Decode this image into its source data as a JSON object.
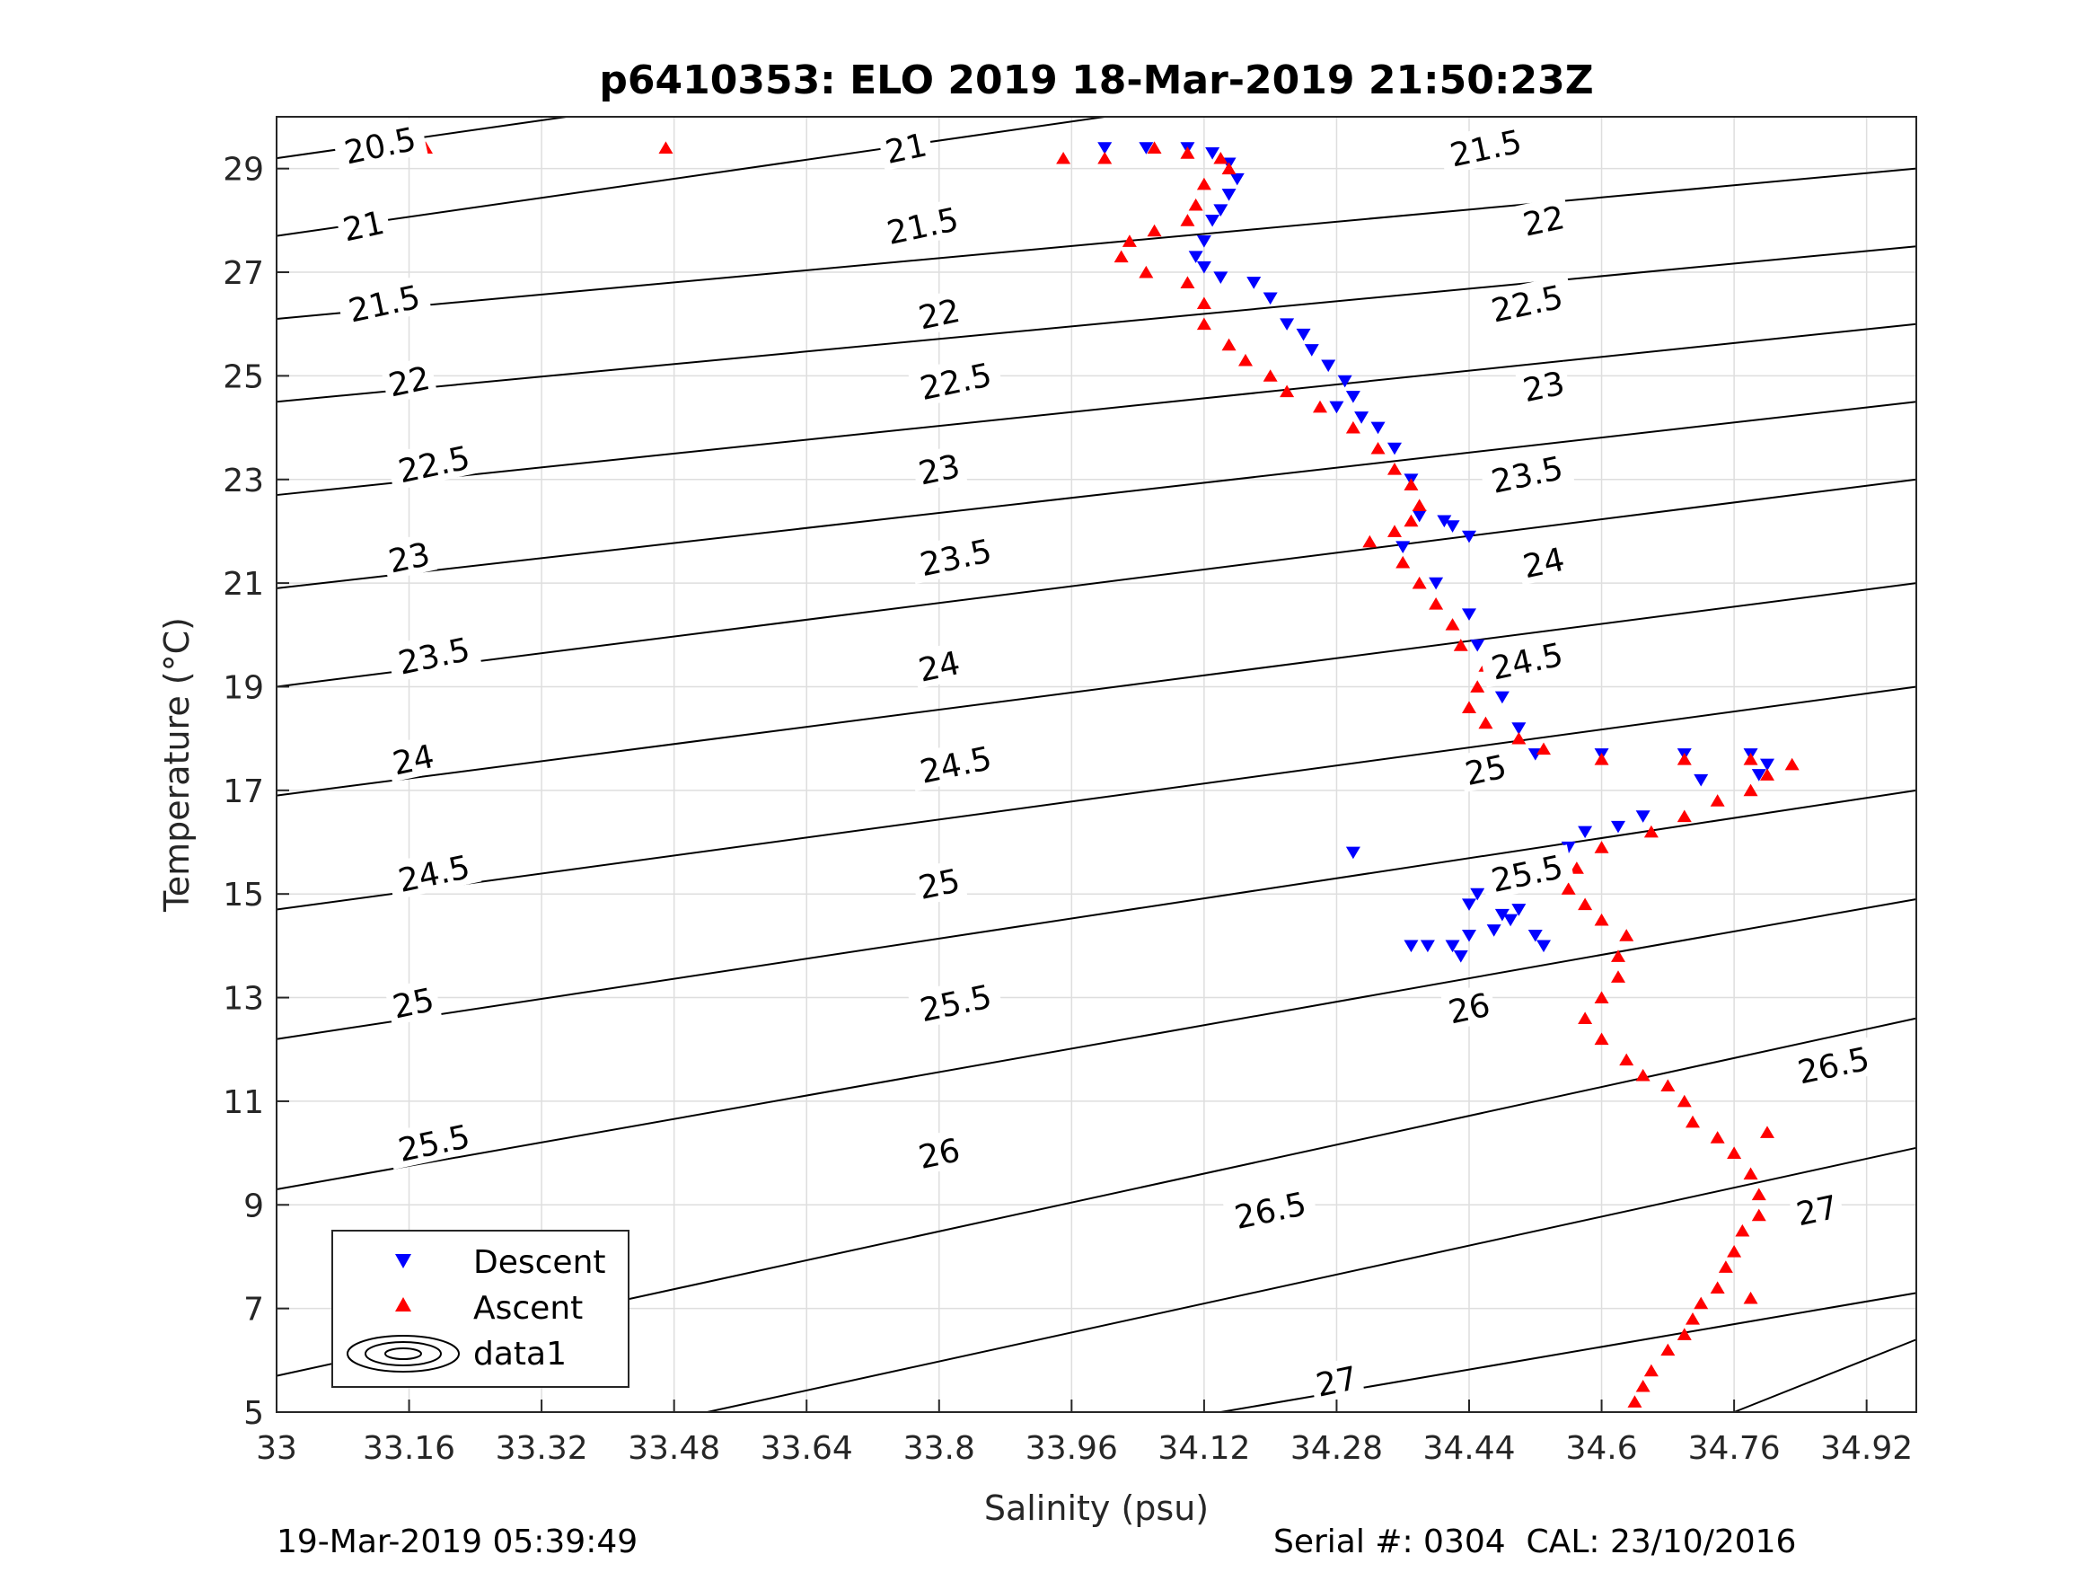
{
  "chart_data": {
    "type": "scatter",
    "title": "p6410353: ELO 2019 18-Mar-2019 21:50:23Z",
    "xlabel": "Salinity (psu)",
    "ylabel": "Temperature (°C)",
    "xlim": [
      33.0,
      34.98
    ],
    "ylim": [
      5,
      30
    ],
    "xticks": [
      "33",
      "33.16",
      "33.32",
      "33.48",
      "33.64",
      "33.8",
      "33.96",
      "34.12",
      "34.28",
      "34.44",
      "34.6",
      "34.76",
      "34.92"
    ],
    "yticks": [
      "5",
      "7",
      "9",
      "11",
      "13",
      "15",
      "17",
      "19",
      "21",
      "23",
      "25",
      "27",
      "29"
    ],
    "grid": true,
    "legend": {
      "placement": "bottom-left",
      "entries": [
        "Descent",
        "Ascent",
        "data1"
      ]
    },
    "series": [
      {
        "name": "Descent",
        "marker": "triangle-down",
        "color": "#0000ff",
        "points": [
          [
            34.0,
            29.4
          ],
          [
            34.05,
            29.4
          ],
          [
            34.1,
            29.4
          ],
          [
            34.13,
            29.3
          ],
          [
            34.15,
            29.1
          ],
          [
            34.16,
            28.8
          ],
          [
            34.15,
            28.5
          ],
          [
            34.14,
            28.2
          ],
          [
            34.13,
            28.0
          ],
          [
            34.12,
            27.6
          ],
          [
            34.11,
            27.3
          ],
          [
            34.12,
            27.1
          ],
          [
            34.14,
            26.9
          ],
          [
            34.18,
            26.8
          ],
          [
            34.2,
            26.5
          ],
          [
            34.22,
            26.0
          ],
          [
            34.24,
            25.8
          ],
          [
            34.25,
            25.5
          ],
          [
            34.27,
            25.2
          ],
          [
            34.29,
            24.9
          ],
          [
            34.3,
            24.6
          ],
          [
            34.28,
            24.4
          ],
          [
            34.31,
            24.2
          ],
          [
            34.33,
            24.0
          ],
          [
            34.35,
            23.6
          ],
          [
            34.37,
            23.0
          ],
          [
            34.38,
            22.3
          ],
          [
            34.41,
            22.2
          ],
          [
            34.42,
            22.1
          ],
          [
            34.44,
            21.9
          ],
          [
            34.36,
            21.7
          ],
          [
            34.4,
            21.0
          ],
          [
            34.44,
            20.4
          ],
          [
            34.45,
            19.8
          ],
          [
            34.47,
            19.3
          ],
          [
            34.48,
            18.8
          ],
          [
            34.5,
            18.2
          ],
          [
            34.52,
            17.7
          ],
          [
            34.6,
            17.7
          ],
          [
            34.7,
            17.7
          ],
          [
            34.78,
            17.7
          ],
          [
            34.8,
            17.5
          ],
          [
            34.79,
            17.3
          ],
          [
            34.72,
            17.2
          ],
          [
            34.65,
            16.5
          ],
          [
            34.62,
            16.3
          ],
          [
            34.58,
            16.2
          ],
          [
            34.56,
            15.9
          ],
          [
            34.5,
            15.5
          ],
          [
            34.47,
            15.2
          ],
          [
            34.45,
            15.0
          ],
          [
            34.44,
            14.8
          ],
          [
            34.48,
            14.6
          ],
          [
            34.5,
            14.7
          ],
          [
            34.47,
            14.3
          ],
          [
            34.44,
            14.2
          ],
          [
            34.42,
            14.0
          ],
          [
            34.43,
            13.8
          ],
          [
            34.37,
            14.0
          ],
          [
            34.39,
            14.0
          ],
          [
            34.3,
            15.8
          ],
          [
            34.52,
            14.2
          ],
          [
            34.53,
            14.0
          ],
          [
            34.49,
            14.5
          ]
        ]
      },
      {
        "name": "Ascent",
        "marker": "triangle-up",
        "color": "#ff0000",
        "points": [
          [
            33.18,
            29.4
          ],
          [
            33.47,
            29.4
          ],
          [
            33.95,
            29.2
          ],
          [
            34.0,
            29.2
          ],
          [
            34.06,
            29.4
          ],
          [
            34.1,
            29.3
          ],
          [
            34.14,
            29.2
          ],
          [
            34.15,
            29.0
          ],
          [
            34.12,
            28.7
          ],
          [
            34.11,
            28.3
          ],
          [
            34.1,
            28.0
          ],
          [
            34.06,
            27.8
          ],
          [
            34.03,
            27.6
          ],
          [
            34.02,
            27.3
          ],
          [
            34.05,
            27.0
          ],
          [
            34.1,
            26.8
          ],
          [
            34.12,
            26.4
          ],
          [
            34.12,
            26.0
          ],
          [
            34.15,
            25.6
          ],
          [
            34.17,
            25.3
          ],
          [
            34.2,
            25.0
          ],
          [
            34.22,
            24.7
          ],
          [
            34.26,
            24.4
          ],
          [
            34.3,
            24.0
          ],
          [
            34.33,
            23.6
          ],
          [
            34.35,
            23.2
          ],
          [
            34.37,
            22.9
          ],
          [
            34.38,
            22.5
          ],
          [
            34.37,
            22.2
          ],
          [
            34.35,
            22.0
          ],
          [
            34.32,
            21.8
          ],
          [
            34.36,
            21.4
          ],
          [
            34.38,
            21.0
          ],
          [
            34.4,
            20.6
          ],
          [
            34.42,
            20.2
          ],
          [
            34.43,
            19.8
          ],
          [
            34.46,
            19.4
          ],
          [
            34.45,
            19.0
          ],
          [
            34.44,
            18.6
          ],
          [
            34.46,
            18.3
          ],
          [
            34.5,
            18.0
          ],
          [
            34.53,
            17.8
          ],
          [
            34.6,
            17.6
          ],
          [
            34.7,
            17.6
          ],
          [
            34.78,
            17.6
          ],
          [
            34.83,
            17.5
          ],
          [
            34.8,
            17.3
          ],
          [
            34.78,
            17.0
          ],
          [
            34.74,
            16.8
          ],
          [
            34.7,
            16.5
          ],
          [
            34.66,
            16.2
          ],
          [
            34.6,
            15.9
          ],
          [
            34.57,
            15.5
          ],
          [
            34.56,
            15.1
          ],
          [
            34.58,
            14.8
          ],
          [
            34.6,
            14.5
          ],
          [
            34.63,
            14.2
          ],
          [
            34.62,
            13.8
          ],
          [
            34.62,
            13.4
          ],
          [
            34.6,
            13.0
          ],
          [
            34.58,
            12.6
          ],
          [
            34.6,
            12.2
          ],
          [
            34.63,
            11.8
          ],
          [
            34.65,
            11.5
          ],
          [
            34.68,
            11.3
          ],
          [
            34.7,
            11.0
          ],
          [
            34.71,
            10.6
          ],
          [
            34.74,
            10.3
          ],
          [
            34.76,
            10.0
          ],
          [
            34.78,
            9.6
          ],
          [
            34.79,
            9.2
          ],
          [
            34.79,
            8.8
          ],
          [
            34.77,
            8.5
          ],
          [
            34.76,
            8.1
          ],
          [
            34.75,
            7.8
          ],
          [
            34.74,
            7.4
          ],
          [
            34.72,
            7.1
          ],
          [
            34.71,
            6.8
          ],
          [
            34.7,
            6.5
          ],
          [
            34.68,
            6.2
          ],
          [
            34.66,
            5.8
          ],
          [
            34.65,
            5.5
          ],
          [
            34.64,
            5.2
          ],
          [
            34.8,
            10.4
          ],
          [
            34.78,
            7.2
          ]
        ]
      }
    ],
    "contour_lines": [
      {
        "label": "20.5",
        "x0": 33.0,
        "y0": 29.2,
        "x1": 33.35,
        "y1": 30.0
      },
      {
        "label": "21",
        "x0": 33.0,
        "y0": 27.7,
        "x1": 34.0,
        "y1": 30.0
      },
      {
        "label": "21.5",
        "x0": 33.0,
        "y0": 26.1,
        "x1": 34.98,
        "y1": 29.0
      },
      {
        "label": "22",
        "x0": 33.0,
        "y0": 24.5,
        "x1": 34.98,
        "y1": 27.5
      },
      {
        "label": "22.5",
        "x0": 33.0,
        "y0": 22.7,
        "x1": 34.98,
        "y1": 26.0
      },
      {
        "label": "23",
        "x0": 33.0,
        "y0": 20.9,
        "x1": 34.98,
        "y1": 24.5
      },
      {
        "label": "23.5",
        "x0": 33.0,
        "y0": 19.0,
        "x1": 34.98,
        "y1": 23.0
      },
      {
        "label": "24",
        "x0": 33.0,
        "y0": 16.9,
        "x1": 34.98,
        "y1": 21.0
      },
      {
        "label": "24.5",
        "x0": 33.0,
        "y0": 14.7,
        "x1": 34.98,
        "y1": 19.0
      },
      {
        "label": "25",
        "x0": 33.0,
        "y0": 12.2,
        "x1": 34.98,
        "y1": 17.0
      },
      {
        "label": "25.5",
        "x0": 33.0,
        "y0": 9.3,
        "x1": 34.98,
        "y1": 14.9
      },
      {
        "label": "26",
        "x0": 33.0,
        "y0": 5.7,
        "x1": 34.98,
        "y1": 12.6
      },
      {
        "label": "26.5",
        "x0": 33.52,
        "y0": 5.0,
        "x1": 34.98,
        "y1": 10.1
      },
      {
        "label": "27",
        "x0": 34.14,
        "y0": 5.0,
        "x1": 34.98,
        "y1": 7.3
      },
      {
        "label": "",
        "x0": 34.76,
        "y0": 5.0,
        "x1": 34.98,
        "y1": 6.4
      }
    ],
    "contour_labels": [
      {
        "text": "20.5",
        "x": 33.125,
        "y": 29.45
      },
      {
        "text": "21",
        "x": 33.105,
        "y": 27.9
      },
      {
        "text": "21.5",
        "x": 33.13,
        "y": 26.4
      },
      {
        "text": "22",
        "x": 33.16,
        "y": 24.9
      },
      {
        "text": "22.5",
        "x": 33.19,
        "y": 23.3
      },
      {
        "text": "23",
        "x": 33.16,
        "y": 21.5
      },
      {
        "text": "23.5",
        "x": 33.19,
        "y": 19.6
      },
      {
        "text": "24",
        "x": 33.165,
        "y": 17.6
      },
      {
        "text": "24.5",
        "x": 33.19,
        "y": 15.4
      },
      {
        "text": "25",
        "x": 33.165,
        "y": 12.9
      },
      {
        "text": "25.5",
        "x": 33.19,
        "y": 10.2
      },
      {
        "text": "26",
        "x": 33.165,
        "y": 6.9
      },
      {
        "text": "21",
        "x": 33.76,
        "y": 29.4
      },
      {
        "text": "21.5",
        "x": 33.78,
        "y": 27.9
      },
      {
        "text": "22",
        "x": 33.8,
        "y": 26.2
      },
      {
        "text": "22.5",
        "x": 33.82,
        "y": 24.9
      },
      {
        "text": "23",
        "x": 33.8,
        "y": 23.2
      },
      {
        "text": "23.5",
        "x": 33.82,
        "y": 21.5
      },
      {
        "text": "24",
        "x": 33.8,
        "y": 19.4
      },
      {
        "text": "24.5",
        "x": 33.82,
        "y": 17.5
      },
      {
        "text": "25",
        "x": 33.8,
        "y": 15.2
      },
      {
        "text": "25.5",
        "x": 33.82,
        "y": 12.9
      },
      {
        "text": "26",
        "x": 33.8,
        "y": 10.0
      },
      {
        "text": "26.5",
        "x": 34.2,
        "y": 8.9
      },
      {
        "text": "27",
        "x": 34.28,
        "y": 5.6
      },
      {
        "text": "21.5",
        "x": 34.46,
        "y": 29.4
      },
      {
        "text": "22",
        "x": 34.53,
        "y": 28.0
      },
      {
        "text": "22.5",
        "x": 34.51,
        "y": 26.4
      },
      {
        "text": "23",
        "x": 34.53,
        "y": 24.8
      },
      {
        "text": "23.5",
        "x": 34.51,
        "y": 23.1
      },
      {
        "text": "24",
        "x": 34.53,
        "y": 21.4
      },
      {
        "text": "24.5",
        "x": 34.51,
        "y": 19.5
      },
      {
        "text": "25",
        "x": 34.46,
        "y": 17.4
      },
      {
        "text": "25.5",
        "x": 34.51,
        "y": 15.4
      },
      {
        "text": "26",
        "x": 34.44,
        "y": 12.8
      },
      {
        "text": "26.5",
        "x": 34.88,
        "y": 11.7
      },
      {
        "text": "27",
        "x": 34.86,
        "y": 8.9
      }
    ]
  },
  "footer": {
    "left": "19-Mar-2019 05:39:49",
    "right": "Serial #: 0304  CAL: 23/10/2016"
  }
}
